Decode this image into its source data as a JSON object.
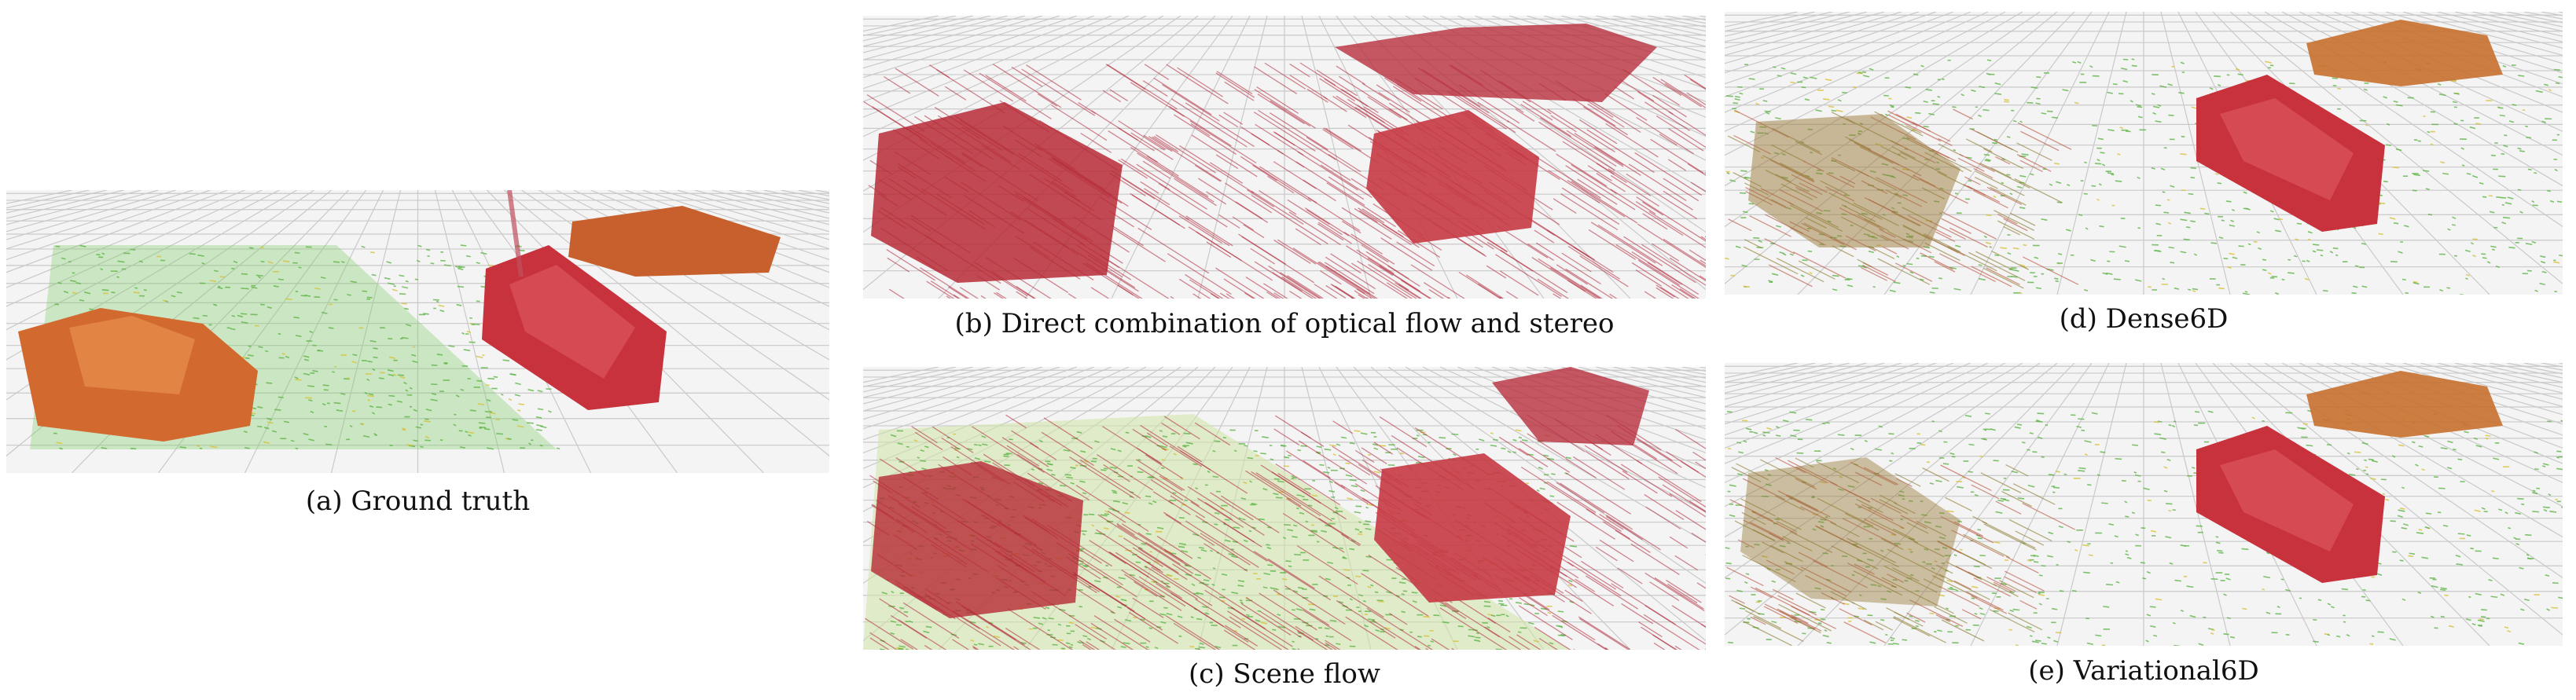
{
  "figure": {
    "panels": [
      {
        "id": "a",
        "caption": "(a) Ground truth"
      },
      {
        "id": "b",
        "caption": "(b) Direct combination of optical flow and stereo"
      },
      {
        "id": "c",
        "caption": "(c) Scene flow"
      },
      {
        "id": "d",
        "caption": "(d) Dense6D"
      },
      {
        "id": "e",
        "caption": "(e) Variational6D"
      }
    ]
  },
  "colors": {
    "grid": "#c9c9c9",
    "background": "#f4f4f4",
    "flow_green": "#5fb548",
    "flow_red": "#b0283a",
    "car_red": "#c8323c",
    "car_orange": "#d2692e"
  }
}
